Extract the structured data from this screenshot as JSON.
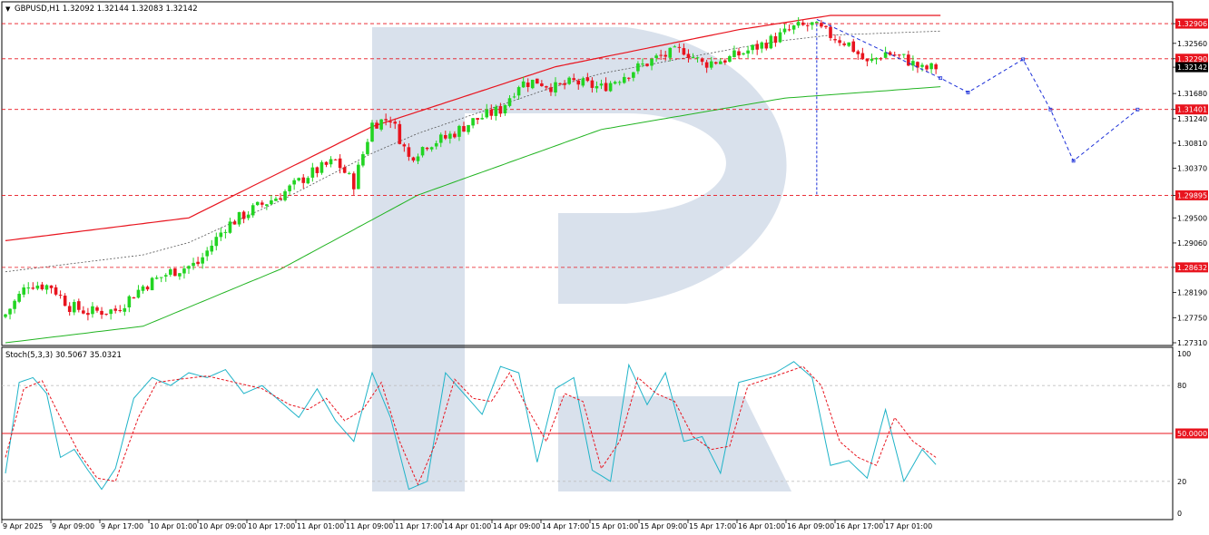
{
  "header": {
    "symbol_info": "GBPUSD,H1  1.32092 1.32144 1.32083 1.32142",
    "stoch_info": "Stoch(5,3,3) 30.5067 35.0321"
  },
  "colors": {
    "bull": "#22d422",
    "bear": "#e8141e",
    "upper_band": "#e8141e",
    "lower_band": "#22b422",
    "level_line": "#e8141e",
    "forecast": "#1a2ed8",
    "stoch_main": "#1fb3c8",
    "stoch_signal": "#e8141e",
    "watermark": "#d9e1ec"
  },
  "chart_data": [
    {
      "type": "candlestick",
      "symbol": "GBPUSD",
      "timeframe": "H1",
      "ylim": [
        1.2731,
        1.3305
      ],
      "y_ticks": [
        "1.32906",
        "1.32560",
        "1.32290",
        "1.32142",
        "1.31680",
        "1.31401",
        "1.31240",
        "1.30810",
        "1.30370",
        "1.29895",
        "1.29500",
        "1.29060",
        "1.28632",
        "1.28190",
        "1.27750",
        "1.27310"
      ],
      "x_ticks": [
        "9 Apr 2025",
        "9 Apr 09:00",
        "9 Apr 17:00",
        "10 Apr 01:00",
        "10 Apr 09:00",
        "10 Apr 17:00",
        "11 Apr 01:00",
        "11 Apr 09:00",
        "11 Apr 17:00",
        "14 Apr 01:00",
        "14 Apr 09:00",
        "14 Apr 17:00",
        "15 Apr 01:00",
        "15 Apr 09:00",
        "15 Apr 17:00",
        "16 Apr 01:00",
        "16 Apr 09:00",
        "16 Apr 17:00",
        "17 Apr 01:00"
      ],
      "horizontal_levels": [
        {
          "label": "1.32906",
          "value": 1.32906
        },
        {
          "label": "1.32290",
          "value": 1.3229
        },
        {
          "label": "1.31401",
          "value": 1.31401
        },
        {
          "label": "1.29895",
          "value": 1.29895
        },
        {
          "label": "1.28632",
          "value": 1.28632
        }
      ],
      "current_price": {
        "label": "1.32142",
        "value": 1.32142
      },
      "close_anchors": [
        {
          "bar": 0,
          "close": 1.2781
        },
        {
          "bar": 5,
          "close": 1.2835
        },
        {
          "bar": 10,
          "close": 1.283
        },
        {
          "bar": 14,
          "close": 1.2795
        },
        {
          "bar": 18,
          "close": 1.2785
        },
        {
          "bar": 24,
          "close": 1.2788
        },
        {
          "bar": 30,
          "close": 1.283
        },
        {
          "bar": 36,
          "close": 1.2855
        },
        {
          "bar": 42,
          "close": 1.287
        },
        {
          "bar": 48,
          "close": 1.2935
        },
        {
          "bar": 54,
          "close": 1.2965
        },
        {
          "bar": 60,
          "close": 1.299
        },
        {
          "bar": 66,
          "close": 1.3025
        },
        {
          "bar": 72,
          "close": 1.305
        },
        {
          "bar": 76,
          "close": 1.301
        },
        {
          "bar": 80,
          "close": 1.3115
        },
        {
          "bar": 84,
          "close": 1.3125
        },
        {
          "bar": 88,
          "close": 1.3055
        },
        {
          "bar": 92,
          "close": 1.308
        },
        {
          "bar": 96,
          "close": 1.309
        },
        {
          "bar": 102,
          "close": 1.312
        },
        {
          "bar": 108,
          "close": 1.314
        },
        {
          "bar": 112,
          "close": 1.3185
        },
        {
          "bar": 116,
          "close": 1.319
        },
        {
          "bar": 120,
          "close": 1.3178
        },
        {
          "bar": 124,
          "close": 1.3188
        },
        {
          "bar": 130,
          "close": 1.3178
        },
        {
          "bar": 136,
          "close": 1.3205
        },
        {
          "bar": 142,
          "close": 1.323
        },
        {
          "bar": 148,
          "close": 1.3245
        },
        {
          "bar": 152,
          "close": 1.322
        },
        {
          "bar": 158,
          "close": 1.323
        },
        {
          "bar": 164,
          "close": 1.325
        },
        {
          "bar": 168,
          "close": 1.3265
        },
        {
          "bar": 172,
          "close": 1.3283
        },
        {
          "bar": 176,
          "close": 1.3288
        },
        {
          "bar": 180,
          "close": 1.327
        },
        {
          "bar": 184,
          "close": 1.3255
        },
        {
          "bar": 188,
          "close": 1.322
        },
        {
          "bar": 192,
          "close": 1.324
        },
        {
          "bar": 196,
          "close": 1.323
        },
        {
          "bar": 200,
          "close": 1.321
        },
        {
          "bar": 203,
          "close": 1.3214
        }
      ],
      "upper_band": [
        {
          "bar": 0,
          "value": 1.291
        },
        {
          "bar": 40,
          "value": 1.295
        },
        {
          "bar": 80,
          "value": 1.311
        },
        {
          "bar": 120,
          "value": 1.3215
        },
        {
          "bar": 160,
          "value": 1.328
        },
        {
          "bar": 180,
          "value": 1.3305
        },
        {
          "bar": 204,
          "value": 1.3305
        }
      ],
      "lower_band": [
        {
          "bar": 0,
          "value": 1.2731
        },
        {
          "bar": 30,
          "value": 1.276
        },
        {
          "bar": 60,
          "value": 1.286
        },
        {
          "bar": 90,
          "value": 1.299
        },
        {
          "bar": 130,
          "value": 1.3105
        },
        {
          "bar": 170,
          "value": 1.316
        },
        {
          "bar": 204,
          "value": 1.318
        }
      ],
      "forecast_path": [
        {
          "bar": 177,
          "value": 1.3298
        },
        {
          "bar": 204,
          "value": 1.3195
        },
        {
          "bar": 210,
          "value": 1.317
        },
        {
          "bar": 222,
          "value": 1.3228
        },
        {
          "bar": 228,
          "value": 1.314
        },
        {
          "bar": 233,
          "value": 1.305
        },
        {
          "bar": 247,
          "value": 1.314
        }
      ],
      "projection_line": [
        {
          "bar": 177,
          "value": 1.329
        },
        {
          "bar": 177,
          "value": 1.2989
        }
      ],
      "bar_count": 204,
      "forecast_bars": 48
    },
    {
      "type": "line",
      "name": "Stoch(5,3,3)",
      "ylim": [
        0,
        100
      ],
      "y_ticks": [
        "100",
        "80",
        "50.0000",
        "20",
        "0"
      ],
      "levels": [
        80,
        50,
        20
      ],
      "main_value": 30.5067,
      "signal_value": 35.0321,
      "main_anchors": [
        {
          "bar": 0,
          "v": 25
        },
        {
          "bar": 3,
          "v": 82
        },
        {
          "bar": 6,
          "v": 85
        },
        {
          "bar": 9,
          "v": 75
        },
        {
          "bar": 12,
          "v": 35
        },
        {
          "bar": 15,
          "v": 40
        },
        {
          "bar": 18,
          "v": 27
        },
        {
          "bar": 21,
          "v": 15
        },
        {
          "bar": 24,
          "v": 28
        },
        {
          "bar": 28,
          "v": 72
        },
        {
          "bar": 32,
          "v": 85
        },
        {
          "bar": 36,
          "v": 80
        },
        {
          "bar": 40,
          "v": 88
        },
        {
          "bar": 44,
          "v": 85
        },
        {
          "bar": 48,
          "v": 90
        },
        {
          "bar": 52,
          "v": 75
        },
        {
          "bar": 56,
          "v": 80
        },
        {
          "bar": 60,
          "v": 70
        },
        {
          "bar": 64,
          "v": 60
        },
        {
          "bar": 68,
          "v": 78
        },
        {
          "bar": 72,
          "v": 58
        },
        {
          "bar": 76,
          "v": 45
        },
        {
          "bar": 80,
          "v": 88
        },
        {
          "bar": 84,
          "v": 60
        },
        {
          "bar": 88,
          "v": 15
        },
        {
          "bar": 92,
          "v": 20
        },
        {
          "bar": 96,
          "v": 88
        },
        {
          "bar": 100,
          "v": 75
        },
        {
          "bar": 104,
          "v": 62
        },
        {
          "bar": 108,
          "v": 92
        },
        {
          "bar": 112,
          "v": 88
        },
        {
          "bar": 116,
          "v": 32
        },
        {
          "bar": 120,
          "v": 78
        },
        {
          "bar": 124,
          "v": 85
        },
        {
          "bar": 128,
          "v": 27
        },
        {
          "bar": 132,
          "v": 20
        },
        {
          "bar": 136,
          "v": 93
        },
        {
          "bar": 140,
          "v": 68
        },
        {
          "bar": 144,
          "v": 88
        },
        {
          "bar": 148,
          "v": 45
        },
        {
          "bar": 152,
          "v": 48
        },
        {
          "bar": 156,
          "v": 25
        },
        {
          "bar": 160,
          "v": 82
        },
        {
          "bar": 164,
          "v": 85
        },
        {
          "bar": 168,
          "v": 88
        },
        {
          "bar": 172,
          "v": 95
        },
        {
          "bar": 176,
          "v": 85
        },
        {
          "bar": 180,
          "v": 30
        },
        {
          "bar": 184,
          "v": 33
        },
        {
          "bar": 188,
          "v": 22
        },
        {
          "bar": 192,
          "v": 65
        },
        {
          "bar": 196,
          "v": 20
        },
        {
          "bar": 200,
          "v": 40
        },
        {
          "bar": 203,
          "v": 30.5
        }
      ],
      "signal_anchors": [
        {
          "bar": 0,
          "v": 35
        },
        {
          "bar": 4,
          "v": 78
        },
        {
          "bar": 8,
          "v": 83
        },
        {
          "bar": 12,
          "v": 60
        },
        {
          "bar": 16,
          "v": 38
        },
        {
          "bar": 20,
          "v": 22
        },
        {
          "bar": 24,
          "v": 20
        },
        {
          "bar": 29,
          "v": 60
        },
        {
          "bar": 33,
          "v": 82
        },
        {
          "bar": 38,
          "v": 84
        },
        {
          "bar": 44,
          "v": 86
        },
        {
          "bar": 50,
          "v": 82
        },
        {
          "bar": 56,
          "v": 78
        },
        {
          "bar": 62,
          "v": 68
        },
        {
          "bar": 66,
          "v": 65
        },
        {
          "bar": 70,
          "v": 72
        },
        {
          "bar": 74,
          "v": 58
        },
        {
          "bar": 78,
          "v": 65
        },
        {
          "bar": 82,
          "v": 82
        },
        {
          "bar": 86,
          "v": 45
        },
        {
          "bar": 90,
          "v": 18
        },
        {
          "bar": 94,
          "v": 45
        },
        {
          "bar": 98,
          "v": 84
        },
        {
          "bar": 102,
          "v": 72
        },
        {
          "bar": 106,
          "v": 70
        },
        {
          "bar": 110,
          "v": 88
        },
        {
          "bar": 114,
          "v": 65
        },
        {
          "bar": 118,
          "v": 45
        },
        {
          "bar": 122,
          "v": 75
        },
        {
          "bar": 126,
          "v": 70
        },
        {
          "bar": 130,
          "v": 28
        },
        {
          "bar": 134,
          "v": 45
        },
        {
          "bar": 138,
          "v": 85
        },
        {
          "bar": 142,
          "v": 75
        },
        {
          "bar": 146,
          "v": 70
        },
        {
          "bar": 150,
          "v": 48
        },
        {
          "bar": 154,
          "v": 40
        },
        {
          "bar": 158,
          "v": 42
        },
        {
          "bar": 162,
          "v": 80
        },
        {
          "bar": 166,
          "v": 84
        },
        {
          "bar": 170,
          "v": 88
        },
        {
          "bar": 174,
          "v": 92
        },
        {
          "bar": 178,
          "v": 80
        },
        {
          "bar": 182,
          "v": 45
        },
        {
          "bar": 186,
          "v": 35
        },
        {
          "bar": 190,
          "v": 30
        },
        {
          "bar": 194,
          "v": 60
        },
        {
          "bar": 198,
          "v": 45
        },
        {
          "bar": 203,
          "v": 35.0
        }
      ]
    }
  ]
}
